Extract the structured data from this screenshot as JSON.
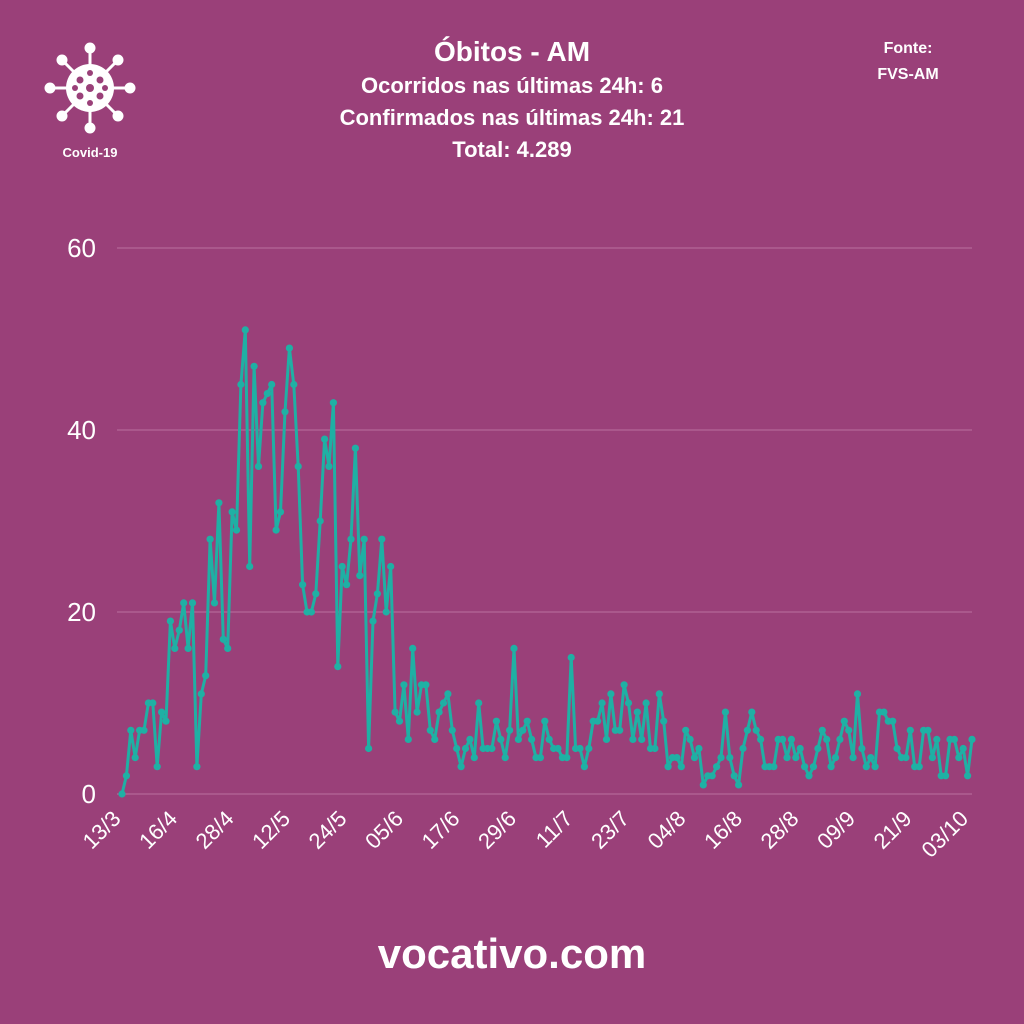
{
  "header": {
    "title": "Óbitos - AM",
    "line1": "Ocorridos nas últimas 24h: 6",
    "line2": "Confirmados nas últimas 24h: 21",
    "line3": "Total: 4.289"
  },
  "source": {
    "label": "Fonte:",
    "value": "FVS-AM"
  },
  "logo": {
    "label": "Covid-19",
    "icon": "virus-icon"
  },
  "footer": {
    "text": "vocativo.com"
  },
  "colors": {
    "background": "#9a4079",
    "line": "#1fb0a4",
    "grid": "#b96fa0",
    "text": "#ffffff"
  },
  "chart_data": {
    "type": "line",
    "title": "",
    "xlabel": "",
    "ylabel": "",
    "ylim": [
      0,
      60
    ],
    "yticks": [
      0,
      20,
      40,
      60
    ],
    "grid": true,
    "x_tick_labels": [
      "13/3",
      "16/4",
      "28/4",
      "12/5",
      "24/5",
      "05/6",
      "17/6",
      "29/6",
      "11/7",
      "23/7",
      "04/8",
      "16/8",
      "28/8",
      "09/9",
      "21/9",
      "03/10"
    ],
    "series": [
      {
        "values": [
          0,
          2,
          7,
          4,
          7,
          7,
          10,
          10,
          3,
          9,
          8,
          19,
          16,
          18,
          21,
          16,
          21,
          3,
          11,
          13,
          28,
          21,
          32,
          17,
          16,
          31,
          29,
          45,
          51,
          25,
          47,
          36,
          43,
          44,
          45,
          29,
          31,
          42,
          49,
          45,
          36,
          23,
          20,
          20,
          22,
          30,
          39,
          36,
          43,
          14,
          25,
          23,
          28,
          38,
          24,
          28,
          5,
          19,
          22,
          28,
          20,
          25,
          9,
          8,
          12,
          6,
          16,
          9,
          12,
          12,
          7,
          6,
          9,
          10,
          11,
          7,
          5,
          3,
          5,
          6,
          4,
          10,
          5,
          5,
          5,
          8,
          6,
          4,
          7,
          16,
          6,
          7,
          8,
          6,
          4,
          4,
          8,
          6,
          5,
          5,
          4,
          4,
          15,
          5,
          5,
          3,
          5,
          8,
          8,
          10,
          6,
          11,
          7,
          7,
          12,
          10,
          6,
          9,
          6,
          10,
          5,
          5,
          11,
          8,
          3,
          4,
          4,
          3,
          7,
          6,
          4,
          5,
          1,
          2,
          2,
          3,
          4,
          9,
          4,
          2,
          1,
          5,
          7,
          9,
          7,
          6,
          3,
          3,
          3,
          6,
          6,
          4,
          6,
          4,
          5,
          3,
          2,
          3,
          5,
          7,
          6,
          3,
          4,
          6,
          8,
          7,
          4,
          11,
          5,
          3,
          4,
          3,
          9,
          9,
          8,
          8,
          5,
          4,
          4,
          7,
          3,
          3,
          7,
          7,
          4,
          6,
          2,
          2,
          6,
          6,
          4,
          5,
          2,
          6
        ]
      }
    ]
  }
}
